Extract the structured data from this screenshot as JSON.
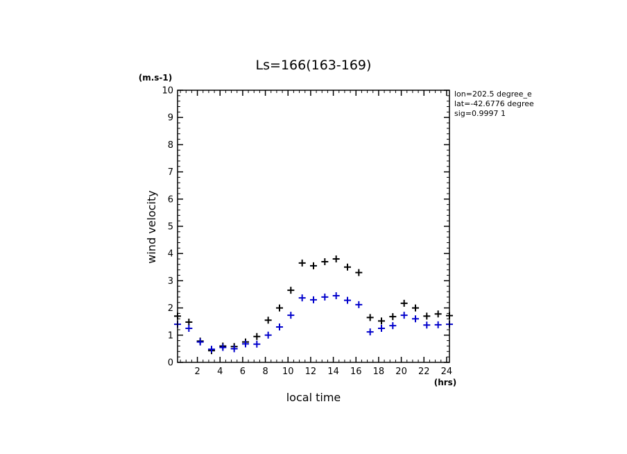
{
  "chart_data": {
    "type": "scatter",
    "title": "Ls=166(163-169)",
    "xlabel": "local time",
    "ylabel": "wind velocity",
    "x_unit": "(hrs)",
    "y_unit": "(m.s-1)",
    "xlim": [
      0.25,
      24.25
    ],
    "ylim": [
      0,
      10
    ],
    "xticks": [
      2,
      4,
      6,
      8,
      10,
      12,
      14,
      16,
      18,
      20,
      22,
      24
    ],
    "yticks": [
      0,
      1,
      2,
      3,
      4,
      5,
      6,
      7,
      8,
      9,
      10
    ],
    "grid": false,
    "annotations": [
      "lon=202.5 degree_e",
      "lat=-42.6776 degree",
      "sig=0.9997 1"
    ],
    "series": [
      {
        "color": "#000000",
        "marker": "plus",
        "x": [
          0.25,
          1.25,
          2.25,
          3.25,
          4.25,
          5.25,
          6.25,
          7.25,
          8.25,
          9.25,
          10.25,
          11.25,
          12.25,
          13.25,
          14.25,
          15.25,
          16.25,
          17.25,
          18.25,
          19.25,
          20.25,
          21.25,
          22.25,
          23.25,
          24.25
        ],
        "y": [
          1.7,
          1.48,
          0.78,
          0.43,
          0.6,
          0.58,
          0.75,
          0.95,
          1.55,
          2.0,
          2.65,
          3.65,
          3.55,
          3.7,
          3.8,
          3.5,
          3.3,
          1.65,
          1.52,
          1.68,
          2.17,
          2.0,
          1.7,
          1.78,
          1.72
        ]
      },
      {
        "color": "#0000cc",
        "marker": "plus",
        "x": [
          0.25,
          1.25,
          2.25,
          3.25,
          4.25,
          5.25,
          6.25,
          7.25,
          8.25,
          9.25,
          10.25,
          11.25,
          12.25,
          13.25,
          14.25,
          15.25,
          16.25,
          17.25,
          18.25,
          19.25,
          20.25,
          21.25,
          22.25,
          23.25,
          24.25
        ],
        "y": [
          1.4,
          1.25,
          0.75,
          0.48,
          0.55,
          0.5,
          0.68,
          0.67,
          1.0,
          1.3,
          1.73,
          2.37,
          2.3,
          2.4,
          2.45,
          2.28,
          2.12,
          1.12,
          1.25,
          1.35,
          1.73,
          1.6,
          1.37,
          1.38,
          1.4
        ]
      }
    ]
  }
}
